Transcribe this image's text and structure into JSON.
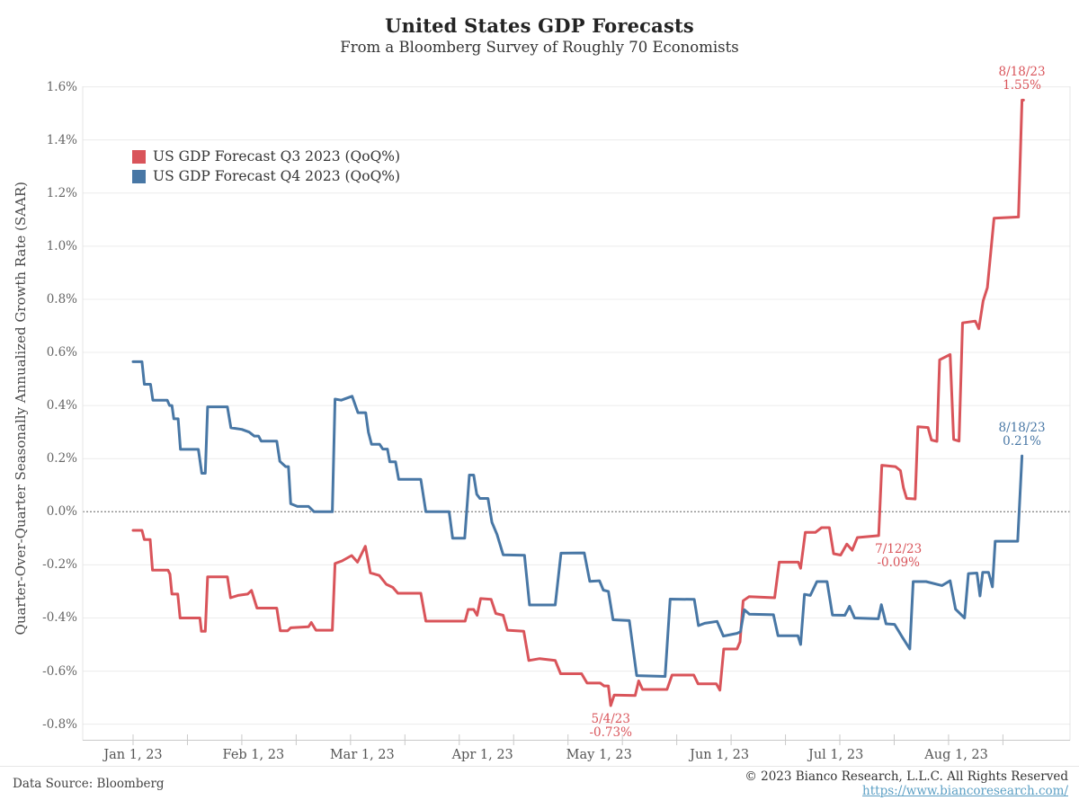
{
  "title": "United States GDP Forecasts",
  "subtitle": "From a Bloomberg Survey of Roughly 70 Economists",
  "y_axis_title": "Quarter-Over-Quarter Seasonally Annualized Growth Rate (SAAR)",
  "legend": {
    "items": [
      {
        "label": "US GDP Forecast Q3 2023 (QoQ%)",
        "color": "#d9545a"
      },
      {
        "label": "US GDP Forecast Q4 2023 (QoQ%)",
        "color": "#4877a5"
      }
    ]
  },
  "footer": {
    "source": "Data Source: Bloomberg",
    "copyright": "© 2023 Bianco Research, L.L.C. All Rights Reserved",
    "link": "https://www.biancoresearch.com/"
  },
  "colors": {
    "q3_red": "#d9545a",
    "q4_blue": "#4877a5",
    "grid": "#ececec",
    "zero_line": "#8c8c8c",
    "axis_line": "#c9c9c9",
    "spine": "#e4e4e4"
  },
  "chart_data": {
    "type": "line",
    "title": "United States GDP Forecasts",
    "subtitle": "From a Bloomberg Survey of Roughly 70 Economists",
    "ylabel": "Quarter-Over-Quarter Seasonally Annualized Growth Rate (SAAR)",
    "ylim": [
      -0.8,
      1.6
    ],
    "y_tick_step": 0.2,
    "x_unit": "days since Jan 1 2023",
    "xlim_days": [
      0,
      229
    ],
    "grid": "horizontal only, zero line emphasized dashed",
    "legend_position": "top-left inside plot",
    "x_ticks": [
      {
        "label": "Jan 1, 23",
        "day": 0
      },
      {
        "label": "Feb 1, 23",
        "day": 31
      },
      {
        "label": "Mar 1, 23",
        "day": 59
      },
      {
        "label": "Apr 1, 23",
        "day": 90
      },
      {
        "label": "May 1, 23",
        "day": 120
      },
      {
        "label": "Jun 1, 23",
        "day": 151
      },
      {
        "label": "Jul 1, 23",
        "day": 181
      },
      {
        "label": "Aug 1, 23",
        "day": 212
      }
    ],
    "minor_tick_every_days": 14,
    "annotations": [
      {
        "id": "q3-latest",
        "series": "q3",
        "date": "8/18/23",
        "value_label": "1.55%",
        "day": 228.9,
        "value": 1.55,
        "placement": "above",
        "dx": 0
      },
      {
        "id": "q4-latest",
        "series": "q4",
        "date": "8/18/23",
        "value_label": "0.21%",
        "day": 228.9,
        "value": 0.21,
        "placement": "above",
        "dx": 0
      },
      {
        "id": "q3-jul12",
        "series": "q3",
        "date": "7/12/23",
        "value_label": "-0.09%",
        "day": 192,
        "value": -0.09,
        "placement": "below",
        "dx": 22
      },
      {
        "id": "q3-low",
        "series": "q3",
        "date": "5/4/23",
        "value_label": "-0.73%",
        "day": 123,
        "value": -0.73,
        "placement": "below",
        "dx": 0
      }
    ],
    "series": [
      {
        "name": "US GDP Forecast Q3 2023 (QoQ%)",
        "color": "#d9545a",
        "points": [
          [
            0,
            -0.07
          ],
          [
            2.3,
            -0.07
          ],
          [
            2.9,
            -0.105
          ],
          [
            4.4,
            -0.105
          ],
          [
            5,
            -0.22
          ],
          [
            9,
            -0.22
          ],
          [
            9.5,
            -0.235
          ],
          [
            10,
            -0.31
          ],
          [
            11.5,
            -0.31
          ],
          [
            12.1,
            -0.4
          ],
          [
            17.2,
            -0.4
          ],
          [
            17.6,
            -0.45
          ],
          [
            18.6,
            -0.45
          ],
          [
            19.2,
            -0.245
          ],
          [
            24.3,
            -0.245
          ],
          [
            25.1,
            -0.324
          ],
          [
            27,
            -0.315
          ],
          [
            29.5,
            -0.31
          ],
          [
            30.5,
            -0.296
          ],
          [
            31.9,
            -0.363
          ],
          [
            37,
            -0.363
          ],
          [
            37.9,
            -0.448
          ],
          [
            39.8,
            -0.448
          ],
          [
            40.6,
            -0.437
          ],
          [
            45.2,
            -0.433
          ],
          [
            45.9,
            -0.417
          ],
          [
            47.1,
            -0.446
          ],
          [
            51.3,
            -0.446
          ],
          [
            52,
            -0.195
          ],
          [
            53.8,
            -0.185
          ],
          [
            56.3,
            -0.165
          ],
          [
            57.8,
            -0.19
          ],
          [
            59.8,
            -0.13
          ],
          [
            61.1,
            -0.23
          ],
          [
            63.4,
            -0.24
          ],
          [
            65.2,
            -0.273
          ],
          [
            66.9,
            -0.285
          ],
          [
            68.2,
            -0.307
          ],
          [
            74.1,
            -0.307
          ],
          [
            75.4,
            -0.412
          ],
          [
            85.5,
            -0.412
          ],
          [
            86.3,
            -0.368
          ],
          [
            87.7,
            -0.368
          ],
          [
            88.6,
            -0.39
          ],
          [
            89.5,
            -0.327
          ],
          [
            92.2,
            -0.33
          ],
          [
            93.4,
            -0.383
          ],
          [
            95.3,
            -0.39
          ],
          [
            96.4,
            -0.446
          ],
          [
            100.6,
            -0.45
          ],
          [
            101.9,
            -0.56
          ],
          [
            104.7,
            -0.553
          ],
          [
            108.7,
            -0.56
          ],
          [
            110.1,
            -0.61
          ],
          [
            115.5,
            -0.61
          ],
          [
            116.9,
            -0.645
          ],
          [
            120.3,
            -0.645
          ],
          [
            121.3,
            -0.656
          ],
          [
            122.4,
            -0.656
          ],
          [
            123,
            -0.73
          ],
          [
            123.9,
            -0.69
          ],
          [
            129.3,
            -0.692
          ],
          [
            130.2,
            -0.637
          ],
          [
            131.2,
            -0.669
          ],
          [
            137.5,
            -0.669
          ],
          [
            138.8,
            -0.615
          ],
          [
            144.4,
            -0.615
          ],
          [
            145.5,
            -0.648
          ],
          [
            150.2,
            -0.648
          ],
          [
            151.1,
            -0.672
          ],
          [
            152.1,
            -0.517
          ],
          [
            155.5,
            -0.517
          ],
          [
            156.3,
            -0.49
          ],
          [
            157.1,
            -0.335
          ],
          [
            158.6,
            -0.32
          ],
          [
            165.2,
            -0.324
          ],
          [
            166.4,
            -0.19
          ],
          [
            171.3,
            -0.19
          ],
          [
            171.9,
            -0.213
          ],
          [
            173.1,
            -0.078
          ],
          [
            175.7,
            -0.078
          ],
          [
            177.3,
            -0.06
          ],
          [
            179.3,
            -0.06
          ],
          [
            180.4,
            -0.158
          ],
          [
            182.2,
            -0.163
          ],
          [
            183.8,
            -0.122
          ],
          [
            185.2,
            -0.145
          ],
          [
            186.5,
            -0.097
          ],
          [
            192,
            -0.09
          ],
          [
            192.8,
            0.175
          ],
          [
            196.3,
            0.17
          ],
          [
            197.6,
            0.155
          ],
          [
            198.4,
            0.09
          ],
          [
            199.2,
            0.05
          ],
          [
            201.4,
            0.048
          ],
          [
            202.1,
            0.32
          ],
          [
            204.7,
            0.317
          ],
          [
            205.6,
            0.27
          ],
          [
            207,
            0.265
          ],
          [
            207.7,
            0.572
          ],
          [
            210.4,
            0.592
          ],
          [
            211.3,
            0.272
          ],
          [
            212.7,
            0.266
          ],
          [
            213.6,
            0.711
          ],
          [
            216.9,
            0.718
          ],
          [
            217.8,
            0.689
          ],
          [
            218.9,
            0.794
          ],
          [
            220,
            0.844
          ],
          [
            221.7,
            1.105
          ],
          [
            228,
            1.11
          ],
          [
            228.9,
            1.55
          ],
          [
            229.3,
            1.55
          ]
        ]
      },
      {
        "name": "US GDP Forecast Q4 2023 (QoQ%)",
        "color": "#4877a5",
        "points": [
          [
            0,
            0.565
          ],
          [
            2.3,
            0.565
          ],
          [
            2.9,
            0.48
          ],
          [
            4.5,
            0.48
          ],
          [
            5.1,
            0.42
          ],
          [
            8.8,
            0.42
          ],
          [
            9.4,
            0.4
          ],
          [
            10,
            0.4
          ],
          [
            10.5,
            0.35
          ],
          [
            11.6,
            0.35
          ],
          [
            12.2,
            0.235
          ],
          [
            16.8,
            0.235
          ],
          [
            17.7,
            0.145
          ],
          [
            18.6,
            0.145
          ],
          [
            19.2,
            0.395
          ],
          [
            24.3,
            0.395
          ],
          [
            25.2,
            0.316
          ],
          [
            28,
            0.31
          ],
          [
            29.9,
            0.3
          ],
          [
            31.2,
            0.285
          ],
          [
            32.3,
            0.285
          ],
          [
            33,
            0.266
          ],
          [
            37,
            0.266
          ],
          [
            37.8,
            0.19
          ],
          [
            39.3,
            0.17
          ],
          [
            40,
            0.17
          ],
          [
            40.6,
            0.03
          ],
          [
            42.3,
            0.02
          ],
          [
            45.2,
            0.02
          ],
          [
            46.6,
            0.0
          ],
          [
            51.3,
            0.0
          ],
          [
            52,
            0.424
          ],
          [
            53.6,
            0.42
          ],
          [
            56.4,
            0.435
          ],
          [
            57.9,
            0.373
          ],
          [
            59.9,
            0.373
          ],
          [
            60.6,
            0.3
          ],
          [
            61.4,
            0.254
          ],
          [
            63.5,
            0.254
          ],
          [
            64.3,
            0.236
          ],
          [
            65.5,
            0.236
          ],
          [
            66.1,
            0.188
          ],
          [
            67.6,
            0.188
          ],
          [
            68.4,
            0.122
          ],
          [
            74.1,
            0.122
          ],
          [
            75.4,
            0.0
          ],
          [
            81.4,
            0.0
          ],
          [
            82.3,
            -0.1
          ],
          [
            85.4,
            -0.1
          ],
          [
            86.6,
            0.138
          ],
          [
            87.7,
            0.138
          ],
          [
            88.5,
            0.066
          ],
          [
            89.3,
            0.05
          ],
          [
            91.4,
            0.05
          ],
          [
            92.4,
            -0.04
          ],
          [
            93.7,
            -0.085
          ],
          [
            95.3,
            -0.162
          ],
          [
            100.8,
            -0.164
          ],
          [
            102.1,
            -0.351
          ],
          [
            108.7,
            -0.351
          ],
          [
            110.2,
            -0.156
          ],
          [
            116.2,
            -0.155
          ],
          [
            117.6,
            -0.262
          ],
          [
            120.1,
            -0.26
          ],
          [
            121.1,
            -0.295
          ],
          [
            122.4,
            -0.3
          ],
          [
            123.6,
            -0.407
          ],
          [
            127.8,
            -0.41
          ],
          [
            129.7,
            -0.617
          ],
          [
            137,
            -0.62
          ],
          [
            138.3,
            -0.329
          ],
          [
            144.5,
            -0.33
          ],
          [
            145.6,
            -0.429
          ],
          [
            147.2,
            -0.42
          ],
          [
            150.4,
            -0.413
          ],
          [
            152,
            -0.468
          ],
          [
            155.5,
            -0.458
          ],
          [
            156.4,
            -0.452
          ],
          [
            157.4,
            -0.369
          ],
          [
            158.7,
            -0.386
          ],
          [
            164.9,
            -0.388
          ],
          [
            166.1,
            -0.467
          ],
          [
            171.2,
            -0.467
          ],
          [
            171.9,
            -0.5
          ],
          [
            172.9,
            -0.311
          ],
          [
            174.4,
            -0.315
          ],
          [
            176.1,
            -0.263
          ],
          [
            178.7,
            -0.263
          ],
          [
            180.1,
            -0.389
          ],
          [
            183.3,
            -0.39
          ],
          [
            184.5,
            -0.356
          ],
          [
            185.8,
            -0.4
          ],
          [
            191.9,
            -0.403
          ],
          [
            192.7,
            -0.35
          ],
          [
            193.9,
            -0.422
          ],
          [
            196.1,
            -0.424
          ],
          [
            198,
            -0.47
          ],
          [
            200,
            -0.517
          ],
          [
            200.9,
            -0.263
          ],
          [
            204.2,
            -0.263
          ],
          [
            208.3,
            -0.278
          ],
          [
            210.4,
            -0.26
          ],
          [
            211.8,
            -0.367
          ],
          [
            214.1,
            -0.4
          ],
          [
            215.1,
            -0.233
          ],
          [
            217.3,
            -0.231
          ],
          [
            218.1,
            -0.317
          ],
          [
            218.8,
            -0.228
          ],
          [
            220.3,
            -0.228
          ],
          [
            221.3,
            -0.283
          ],
          [
            222,
            -0.111
          ],
          [
            227.8,
            -0.111
          ],
          [
            228.9,
            0.21
          ]
        ]
      }
    ]
  }
}
